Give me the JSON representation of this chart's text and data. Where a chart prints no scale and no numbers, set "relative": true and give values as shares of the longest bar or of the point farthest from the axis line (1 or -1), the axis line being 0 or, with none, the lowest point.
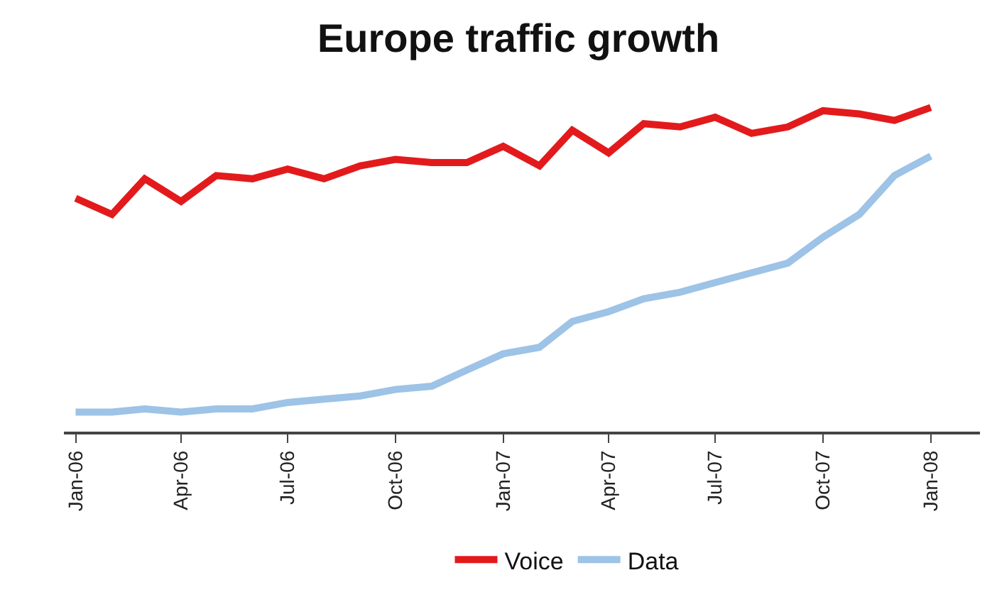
{
  "chart_data": {
    "type": "line",
    "title": "Europe traffic growth",
    "relative": true,
    "x": [
      "2006-01",
      "2006-02",
      "2006-03",
      "2006-04",
      "2006-05",
      "2006-06",
      "2006-07",
      "2006-08",
      "2006-09",
      "2006-10",
      "2006-11",
      "2006-12",
      "2007-01",
      "2007-02",
      "2007-03",
      "2007-04",
      "2007-05",
      "2007-06",
      "2007-07",
      "2007-08",
      "2007-09",
      "2007-10",
      "2007-11",
      "2007-12",
      "2008-01"
    ],
    "series": [
      {
        "name": "Voice",
        "color": "#e31a1c",
        "values": [
          0.72,
          0.67,
          0.78,
          0.71,
          0.79,
          0.78,
          0.81,
          0.78,
          0.82,
          0.84,
          0.83,
          0.83,
          0.88,
          0.82,
          0.93,
          0.86,
          0.95,
          0.94,
          0.97,
          0.92,
          0.94,
          0.99,
          0.98,
          0.96,
          1
        ]
      },
      {
        "name": "Data",
        "color": "#9dc3e6",
        "values": [
          0.06,
          0.06,
          0.07,
          0.06,
          0.07,
          0.07,
          0.09,
          0.1,
          0.11,
          0.13,
          0.14,
          0.19,
          0.24,
          0.26,
          0.34,
          0.37,
          0.41,
          0.43,
          0.46,
          0.49,
          0.52,
          0.6,
          0.67,
          0.79,
          0.85
        ]
      }
    ],
    "xlim": [
      "2005-12-22",
      "2008-02-12"
    ],
    "xticks": [
      {
        "value": "2006-01",
        "label": "Jan-06"
      },
      {
        "value": "2006-04",
        "label": "Apr-06"
      },
      {
        "value": "2006-07",
        "label": "Jul-06"
      },
      {
        "value": "2006-10",
        "label": "Oct-06"
      },
      {
        "value": "2007-01",
        "label": "Jan-07"
      },
      {
        "value": "2007-04",
        "label": "Apr-07"
      },
      {
        "value": "2007-07",
        "label": "Jul-07"
      },
      {
        "value": "2007-10",
        "label": "Oct-07"
      },
      {
        "value": "2008-01",
        "label": "Jan-08"
      }
    ],
    "legend": "bottom",
    "marker": "none",
    "line_style": "solid"
  }
}
